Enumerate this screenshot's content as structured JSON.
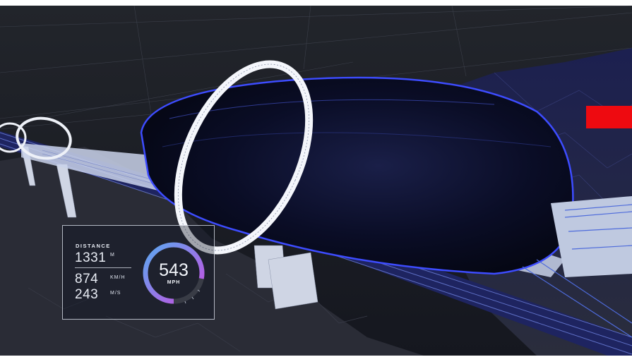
{
  "hud": {
    "distance_label": "DISTANCE",
    "distance_value": "1331",
    "distance_unit": "M",
    "speed_kmh": "874",
    "speed_kmh_unit": "KM/H",
    "speed_ms": "243",
    "speed_ms_unit": "M/S",
    "gauge_speed": "543",
    "gauge_unit": "MPH",
    "gauge_fill_fraction": 0.78
  },
  "colors": {
    "background": "#141720",
    "pod_body": "#0a0f2e",
    "wireframe_blue": "#3d4cff",
    "gauge_gradient_start": "#5aa9f0",
    "gauge_gradient_end": "#c84de0",
    "red_badge": "#ee0a10",
    "hud_text": "#e8ecf4"
  }
}
